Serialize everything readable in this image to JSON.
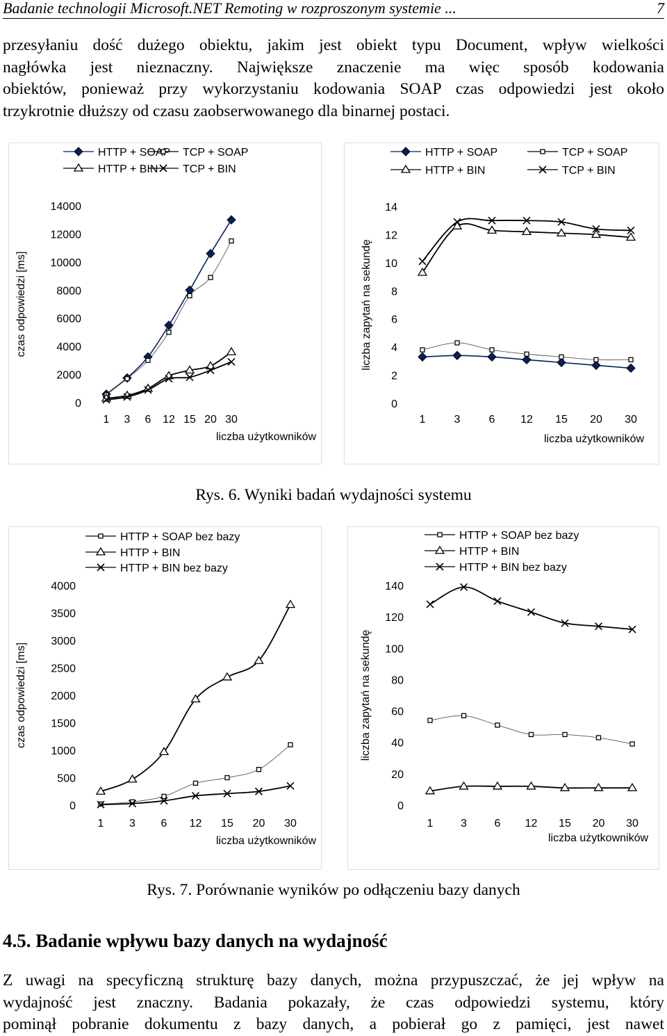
{
  "header": {
    "title": "Badanie technologii Microsoft.NET Remoting w rozproszonym systemie ...",
    "page": "7"
  },
  "intro_lines": [
    "przesyłaniu dość dużego obiektu, jakim jest obiekt typu Document, wpływ wielkości",
    "nagłówka jest nieznaczny. Największe znaczenie ma więc sposób kodowania",
    "obiektów, ponieważ przy wykorzystaniu kodowania SOAP czas odpowiedzi jest około",
    "trzykrotnie dłuższy od czasu zaobserwowanego dla binarnej postaci."
  ],
  "fig6_caption": "Rys. 6. Wyniki badań wydajności systemu",
  "fig7_caption": "Rys. 7. Porównanie wyników po odłączeniu bazy danych",
  "section": {
    "number": "4.5.",
    "title": "Badanie wpływu bazy danych na wydajność"
  },
  "outro_lines": [
    "Z uwagi na specyficzną strukturę bazy danych, można przypuszczać, że jej wpływ na",
    "wydajność jest znaczny. Badania pokazały, że czas odpowiedzi systemu, który",
    "pominął pobranie dokumentu z bazy danych, a pobierał go z pamięci, jest nawet"
  ],
  "chart_data": [
    {
      "id": "fig6-left",
      "type": "line",
      "figure": "Rys. 6",
      "xlabel": "liczba użytkowników",
      "ylabel": "czas odpowiedzi [ms]",
      "categories": [
        "1",
        "3",
        "6",
        "12",
        "15",
        "20",
        "30"
      ],
      "ylim": [
        0,
        14000
      ],
      "yticks": [
        "0",
        "2000",
        "4000",
        "6000",
        "8000",
        "10000",
        "12000",
        "14000"
      ],
      "legend_position": "top",
      "series": [
        {
          "name": "HTTP + SOAP",
          "marker": "diamond",
          "values": [
            600,
            1750,
            3250,
            5500,
            8000,
            10600,
            13000
          ]
        },
        {
          "name": "TCP + SOAP",
          "marker": "square",
          "values": [
            550,
            1700,
            3000,
            5000,
            7600,
            8900,
            11500
          ]
        },
        {
          "name": "HTTP + BIN",
          "marker": "triangle",
          "values": [
            300,
            500,
            1000,
            1900,
            2300,
            2600,
            3600
          ]
        },
        {
          "name": "TCP + BIN",
          "marker": "x",
          "values": [
            200,
            400,
            900,
            1700,
            1800,
            2300,
            2900
          ]
        }
      ]
    },
    {
      "id": "fig6-right",
      "type": "line",
      "figure": "Rys. 6",
      "xlabel": "liczba użytkowników",
      "ylabel": "liczba zapytań na sekundę",
      "categories": [
        "1",
        "3",
        "6",
        "12",
        "15",
        "20",
        "30"
      ],
      "ylim": [
        0,
        14
      ],
      "yticks": [
        "0",
        "2",
        "4",
        "6",
        "8",
        "10",
        "12",
        "14"
      ],
      "legend_position": "top",
      "series": [
        {
          "name": "HTTP + SOAP",
          "marker": "diamond",
          "values": [
            3.3,
            3.4,
            3.3,
            3.1,
            2.9,
            2.7,
            2.5
          ]
        },
        {
          "name": "TCP + SOAP",
          "marker": "square",
          "values": [
            3.8,
            4.3,
            3.8,
            3.5,
            3.3,
            3.1,
            3.1
          ]
        },
        {
          "name": "HTTP + BIN",
          "marker": "triangle",
          "values": [
            9.3,
            12.6,
            12.3,
            12.2,
            12.1,
            12.0,
            11.8
          ]
        },
        {
          "name": "TCP + BIN",
          "marker": "x",
          "values": [
            10.1,
            12.9,
            13.0,
            13.0,
            12.9,
            12.4,
            12.3
          ]
        }
      ]
    },
    {
      "id": "fig7-left",
      "type": "line",
      "figure": "Rys. 7",
      "xlabel": "liczba użytkowników",
      "ylabel": "czas odpowiedzi [ms]",
      "categories": [
        "1",
        "3",
        "6",
        "12",
        "15",
        "20",
        "30"
      ],
      "ylim": [
        0,
        4000
      ],
      "yticks": [
        "0",
        "500",
        "1000",
        "1500",
        "2000",
        "2500",
        "3000",
        "3500",
        "4000"
      ],
      "legend_position": "top",
      "series": [
        {
          "name": "HTTP + SOAP bez bazy",
          "marker": "square",
          "values": [
            20,
            60,
            160,
            400,
            500,
            650,
            1100
          ]
        },
        {
          "name": "HTTP + BIN",
          "marker": "triangle",
          "values": [
            250,
            470,
            970,
            1930,
            2330,
            2630,
            3650
          ]
        },
        {
          "name": "HTTP + BIN bez bazy",
          "marker": "x",
          "values": [
            10,
            30,
            80,
            170,
            210,
            250,
            350
          ]
        }
      ]
    },
    {
      "id": "fig7-right",
      "type": "line",
      "figure": "Rys. 7",
      "xlabel": "liczba użytkowników",
      "ylabel": "liczba zapytań na sekundę",
      "categories": [
        "1",
        "3",
        "6",
        "12",
        "15",
        "20",
        "30"
      ],
      "ylim": [
        0,
        140
      ],
      "yticks": [
        "0",
        "20",
        "40",
        "60",
        "80",
        "100",
        "120",
        "140"
      ],
      "legend_position": "top",
      "series": [
        {
          "name": "HTTP + SOAP bez bazy",
          "marker": "square",
          "values": [
            54,
            57,
            51,
            45,
            45,
            43,
            39
          ]
        },
        {
          "name": "HTTP + BIN",
          "marker": "triangle",
          "values": [
            9,
            12,
            12,
            12,
            11,
            11,
            11
          ]
        },
        {
          "name": "HTTP + BIN bez bazy",
          "marker": "x",
          "values": [
            128,
            139,
            130,
            123,
            116,
            114,
            112
          ]
        }
      ]
    }
  ]
}
